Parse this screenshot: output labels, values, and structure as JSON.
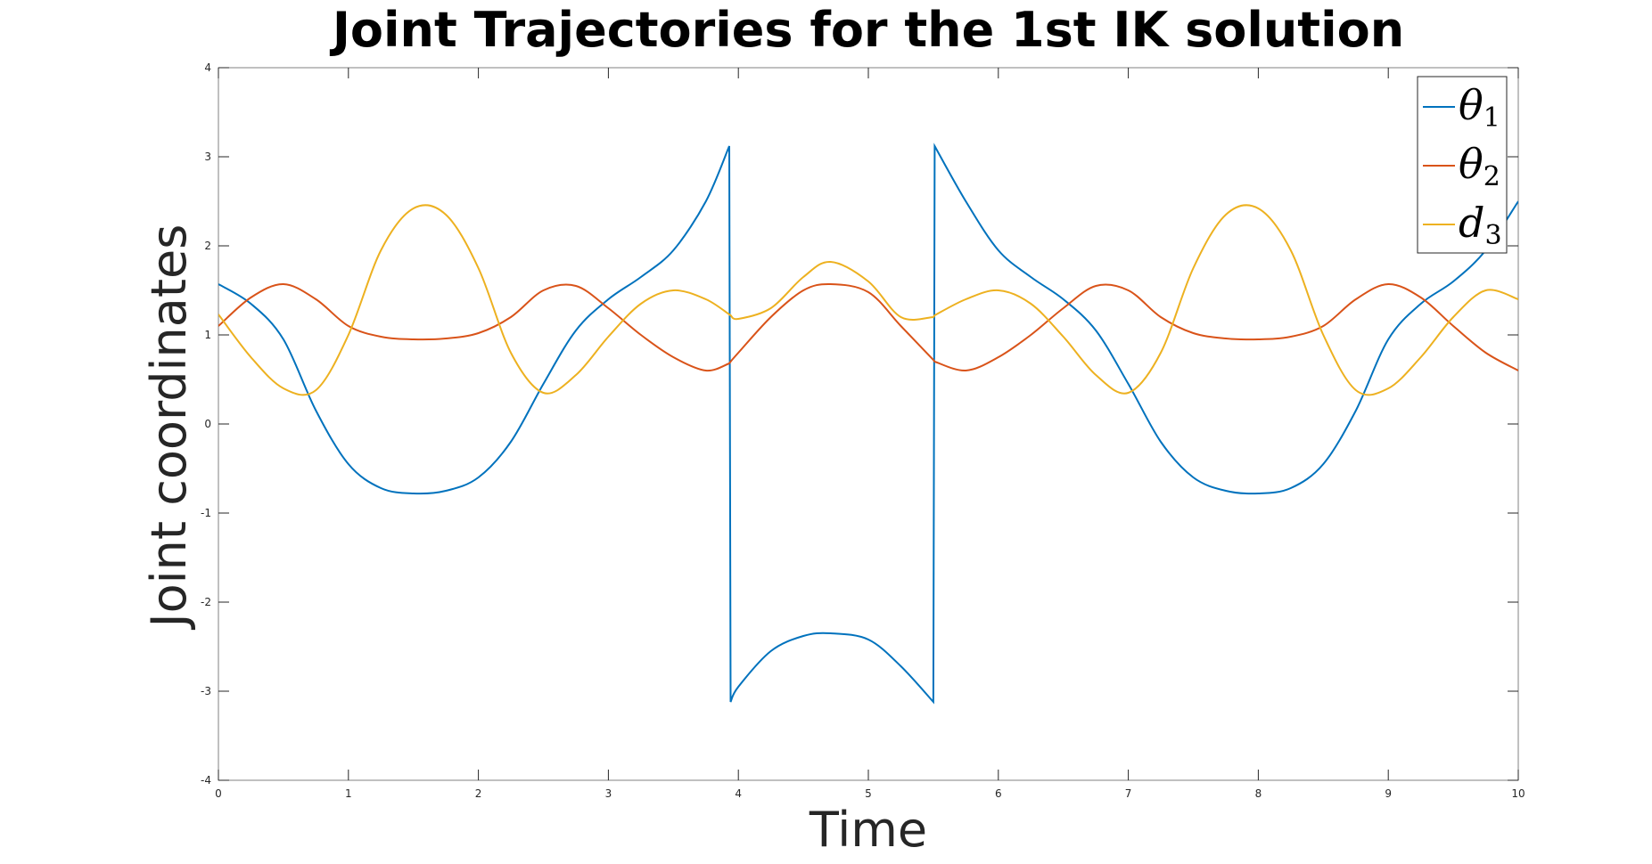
{
  "chart_data": {
    "type": "line",
    "title": "Joint Trajectories for the 1st IK solution",
    "xlabel": "Time",
    "ylabel": "Joint coordinates",
    "xlim": [
      0,
      10
    ],
    "ylim": [
      -4,
      4
    ],
    "xticks": [
      "0",
      "1",
      "2",
      "3",
      "4",
      "5",
      "6",
      "7",
      "8",
      "9",
      "10"
    ],
    "yticks": [
      "-4",
      "-3",
      "-2",
      "-1",
      "0",
      "1",
      "2",
      "3",
      "4"
    ],
    "legend_position": "top-right",
    "grid": false,
    "x": [
      0,
      0.25,
      0.5,
      0.75,
      1,
      1.25,
      1.5,
      1.75,
      2,
      2.25,
      2.5,
      2.75,
      3,
      3.25,
      3.5,
      3.75,
      3.93,
      3.94,
      4,
      4.25,
      4.5,
      4.71,
      5,
      5.25,
      5.5,
      5.51,
      5.75,
      6,
      6.25,
      6.5,
      6.75,
      7,
      7.25,
      7.5,
      7.75,
      8,
      8.25,
      8.5,
      8.75,
      9,
      9.25,
      9.5,
      9.75,
      10
    ],
    "series": [
      {
        "name": "θ1",
        "label_main": "θ",
        "label_sub": "1",
        "color": "#0072BD",
        "values": [
          1.57,
          1.35,
          0.95,
          0.15,
          -0.45,
          -0.72,
          -0.78,
          -0.75,
          -0.6,
          -0.2,
          0.45,
          1.05,
          1.4,
          1.65,
          1.95,
          2.5,
          3.12,
          -3.12,
          -2.95,
          -2.55,
          -2.38,
          -2.35,
          -2.42,
          -2.72,
          -3.12,
          3.12,
          2.5,
          1.95,
          1.65,
          1.4,
          1.05,
          0.45,
          -0.2,
          -0.6,
          -0.75,
          -0.78,
          -0.72,
          -0.45,
          0.15,
          0.95,
          1.35,
          1.6,
          1.95,
          2.5
        ]
      },
      {
        "name": "θ2",
        "label_main": "θ",
        "label_sub": "2",
        "color": "#D95319",
        "values": [
          1.1,
          1.42,
          1.57,
          1.4,
          1.1,
          0.98,
          0.95,
          0.96,
          1.02,
          1.2,
          1.5,
          1.55,
          1.3,
          1.0,
          0.75,
          0.6,
          0.68,
          0.7,
          0.8,
          1.2,
          1.5,
          1.57,
          1.48,
          1.1,
          0.72,
          0.7,
          0.6,
          0.75,
          1.0,
          1.3,
          1.55,
          1.5,
          1.2,
          1.02,
          0.96,
          0.95,
          0.98,
          1.1,
          1.4,
          1.57,
          1.42,
          1.1,
          0.8,
          0.6
        ]
      },
      {
        "name": "d3",
        "label_main": "d",
        "label_sub": "3",
        "color": "#EDB120",
        "values": [
          1.23,
          0.75,
          0.4,
          0.38,
          1.0,
          1.95,
          2.42,
          2.35,
          1.75,
          0.8,
          0.35,
          0.55,
          0.98,
          1.35,
          1.5,
          1.4,
          1.23,
          1.22,
          1.18,
          1.3,
          1.65,
          1.82,
          1.6,
          1.2,
          1.2,
          1.22,
          1.4,
          1.5,
          1.35,
          0.98,
          0.55,
          0.35,
          0.8,
          1.75,
          2.35,
          2.42,
          1.95,
          1.0,
          0.38,
          0.4,
          0.75,
          1.2,
          1.5,
          1.4
        ]
      }
    ]
  }
}
